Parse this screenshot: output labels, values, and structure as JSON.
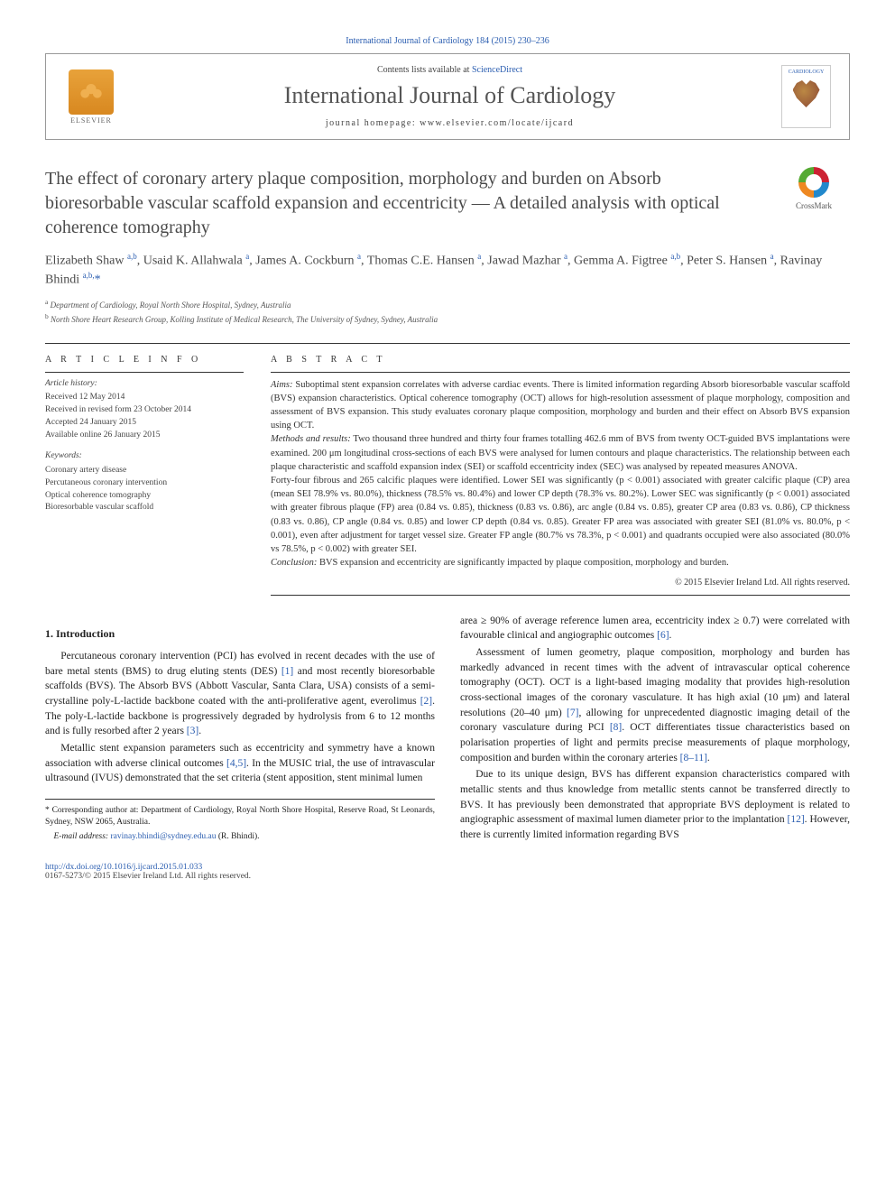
{
  "citation": "International Journal of Cardiology 184 (2015) 230–236",
  "header": {
    "contents_prefix": "Contents lists available at ",
    "contents_link": "ScienceDirect",
    "journal_name": "International Journal of Cardiology",
    "homepage_prefix": "journal homepage: ",
    "homepage": "www.elsevier.com/locate/ijcard",
    "publisher": "ELSEVIER",
    "cover_label": "CARDIOLOGY"
  },
  "crossmark_label": "CrossMark",
  "title": "The effect of coronary artery plaque composition, morphology and burden on Absorb bioresorbable vascular scaffold expansion and eccentricity — A detailed analysis with optical coherence tomography",
  "authors_html": "Elizabeth Shaw <sup>a,b</sup>, Usaid K. Allahwala <sup>a</sup>, James A. Cockburn <sup>a</sup>, Thomas C.E. Hansen <sup>a</sup>, Jawad Mazhar <sup>a</sup>, Gemma A. Figtree <sup>a,b</sup>, Peter S. Hansen <sup>a</sup>, Ravinay Bhindi <sup>a,b,</sup><span class='star'>*</span>",
  "affiliations": [
    {
      "key": "a",
      "text": "Department of Cardiology, Royal North Shore Hospital, Sydney, Australia"
    },
    {
      "key": "b",
      "text": "North Shore Heart Research Group, Kolling Institute of Medical Research, The University of Sydney, Sydney, Australia"
    }
  ],
  "meta": {
    "info_heading": "A R T I C L E   I N F O",
    "abstract_heading": "A B S T R A C T",
    "history_label": "Article history:",
    "history": [
      "Received 12 May 2014",
      "Received in revised form 23 October 2014",
      "Accepted 24 January 2015",
      "Available online 26 January 2015"
    ],
    "keywords_label": "Keywords:",
    "keywords": [
      "Coronary artery disease",
      "Percutaneous coronary intervention",
      "Optical coherence tomography",
      "Bioresorbable vascular scaffold"
    ]
  },
  "abstract": {
    "aims_label": "Aims:",
    "aims": " Suboptimal stent expansion correlates with adverse cardiac events. There is limited information regarding Absorb bioresorbable vascular scaffold (BVS) expansion characteristics. Optical coherence tomography (OCT) allows for high-resolution assessment of plaque morphology, composition and assessment of BVS expansion. This study evaluates coronary plaque composition, morphology and burden and their effect on Absorb BVS expansion using OCT.",
    "methods_label": "Methods and results:",
    "methods": " Two thousand three hundred and thirty four frames totalling 462.6 mm of BVS from twenty OCT-guided BVS implantations were examined. 200 μm longitudinal cross-sections of each BVS were analysed for lumen contours and plaque characteristics. The relationship between each plaque characteristic and scaffold expansion index (SEI) or scaffold eccentricity index (SEC) was analysed by repeated measures ANOVA.",
    "results": "Forty-four fibrous and 265 calcific plaques were identified. Lower SEI was significantly (p < 0.001) associated with greater calcific plaque (CP) area (mean SEI 78.9% vs. 80.0%), thickness (78.5% vs. 80.4%) and lower CP depth (78.3% vs. 80.2%). Lower SEC was significantly (p < 0.001) associated with greater fibrous plaque (FP) area (0.84 vs. 0.85), thickness (0.83 vs. 0.86), arc angle (0.84 vs. 0.85), greater CP area (0.83 vs. 0.86), CP thickness (0.83 vs. 0.86), CP angle (0.84 vs. 0.85) and lower CP depth (0.84 vs. 0.85). Greater FP area was associated with greater SEI (81.0% vs. 80.0%, p < 0.001), even after adjustment for target vessel size. Greater FP angle (80.7% vs 78.3%, p < 0.001) and quadrants occupied were also associated (80.0% vs 78.5%, p < 0.002) with greater SEI.",
    "conclusion_label": "Conclusion:",
    "conclusion": " BVS expansion and eccentricity are significantly impacted by plaque composition, morphology and burden.",
    "copyright": "© 2015 Elsevier Ireland Ltd. All rights reserved."
  },
  "body": {
    "section1_heading": "1. Introduction",
    "p1_pre": "Percutaneous coronary intervention (PCI) has evolved in recent decades with the use of bare metal stents (BMS) to drug eluting stents (DES) ",
    "ref1": "[1]",
    "p1_mid1": " and most recently bioresorbable scaffolds (BVS). The Absorb BVS (Abbott Vascular, Santa Clara, USA) consists of a semi-crystalline poly-L-lactide backbone coated with the anti-proliferative agent, everolimus ",
    "ref2": "[2]",
    "p1_mid2": ". The poly-L-lactide backbone is progressively degraded by hydrolysis from 6 to 12 months and is fully resorbed after 2 years ",
    "ref3": "[3]",
    "p1_end": ".",
    "p2_pre": "Metallic stent expansion parameters such as eccentricity and symmetry have a known association with adverse clinical outcomes ",
    "ref45": "[4,5]",
    "p2_mid": ". In the MUSIC trial, the use of intravascular ultrasound (IVUS) demonstrated that the set criteria (stent apposition, stent minimal lumen",
    "p3_pre": "area ≥ 90% of average reference lumen area, eccentricity index ≥ 0.7) were correlated with favourable clinical and angiographic outcomes ",
    "ref6": "[6]",
    "p3_end": ".",
    "p4_pre": "Assessment of lumen geometry, plaque composition, morphology and burden has markedly advanced in recent times with the advent of intravascular optical coherence tomography (OCT). OCT is a light-based imaging modality that provides high-resolution cross-sectional images of the coronary vasculature. It has high axial (10 μm) and lateral resolutions (20–40 μm) ",
    "ref7": "[7]",
    "p4_mid1": ", allowing for unprecedented diagnostic imaging detail of the coronary vasculature during PCI ",
    "ref8": "[8]",
    "p4_mid2": ". OCT differentiates tissue characteristics based on polarisation properties of light and permits precise measurements of plaque morphology, composition and burden within the coronary arteries ",
    "ref811": "[8–11]",
    "p4_end": ".",
    "p5_pre": "Due to its unique design, BVS has different expansion characteristics compared with metallic stents and thus knowledge from metallic stents cannot be transferred directly to BVS. It has previously been demonstrated that appropriate BVS deployment is related to angiographic assessment of maximal lumen diameter prior to the implantation ",
    "ref12": "[12]",
    "p5_end": ". However, there is currently limited information regarding BVS"
  },
  "footnote": {
    "corr_label": "* Corresponding author at: ",
    "corr_text": "Department of Cardiology, Royal North Shore Hospital, Reserve Road, St Leonards, Sydney, NSW 2065, Australia.",
    "email_label": "E-mail address: ",
    "email": "ravinay.bhindi@sydney.edu.au",
    "email_suffix": " (R. Bhindi)."
  },
  "footer": {
    "doi": "http://dx.doi.org/10.1016/j.ijcard.2015.01.033",
    "issn_line": "0167-5273/© 2015 Elsevier Ireland Ltd. All rights reserved."
  }
}
